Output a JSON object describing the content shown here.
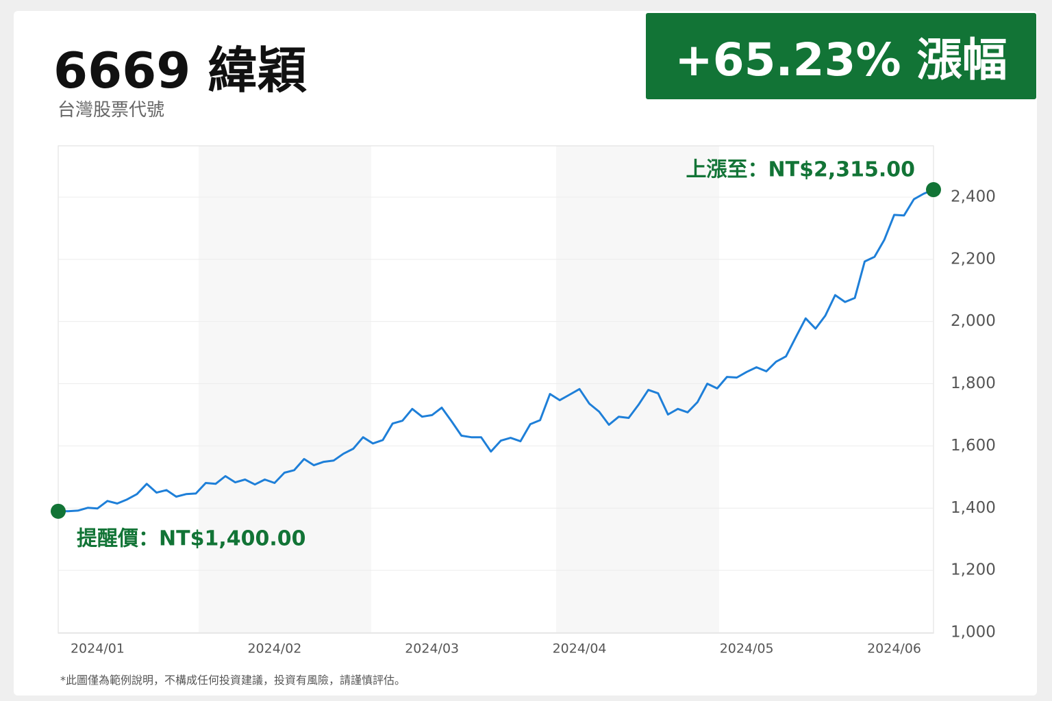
{
  "header": {
    "title": "6669 緯穎",
    "subtitle": "台灣股票代號",
    "badge": "+65.23% 漲幅"
  },
  "footnote": "*此圖僅為範例說明，不構成任何投資建議，投資有風險，請謹慎評估。",
  "chart_data": {
    "type": "line",
    "categories": [
      null,
      null,
      null,
      null,
      "2024/01",
      null,
      null,
      null,
      null,
      null,
      null,
      null,
      null,
      null,
      null,
      null,
      null,
      null,
      null,
      null,
      null,
      null,
      "2024/02",
      null,
      null,
      null,
      null,
      null,
      null,
      null,
      null,
      null,
      null,
      null,
      null,
      null,
      null,
      null,
      "2024/03",
      null,
      null,
      null,
      null,
      null,
      null,
      null,
      null,
      null,
      null,
      null,
      null,
      null,
      null,
      "2024/04",
      null,
      null,
      null,
      null,
      null,
      null,
      null,
      null,
      null,
      null,
      null,
      null,
      null,
      null,
      null,
      null,
      "2024/05",
      null,
      null,
      null,
      null,
      null,
      null,
      null,
      null,
      null,
      null,
      null,
      null,
      null,
      null,
      "2024/06",
      null,
      null,
      null,
      null
    ],
    "values": [
      1390,
      1390,
      1392,
      1401,
      1399,
      1423,
      1415,
      1428,
      1445,
      1478,
      1450,
      1458,
      1437,
      1445,
      1447,
      1481,
      1478,
      1503,
      1483,
      1492,
      1476,
      1492,
      1481,
      1514,
      1522,
      1558,
      1538,
      1549,
      1553,
      1575,
      1591,
      1628,
      1608,
      1619,
      1672,
      1681,
      1719,
      1694,
      1699,
      1723,
      1679,
      1633,
      1628,
      1628,
      1582,
      1617,
      1626,
      1615,
      1670,
      1683,
      1767,
      1747,
      1765,
      1783,
      1736,
      1710,
      1668,
      1694,
      1690,
      1732,
      1780,
      1769,
      1701,
      1719,
      1708,
      1741,
      1800,
      1785,
      1822,
      1820,
      1838,
      1853,
      1840,
      1871,
      1888,
      1950,
      2010,
      1977,
      2019,
      2085,
      2063,
      2076,
      2193,
      2208,
      2263,
      2343,
      2341,
      2393,
      2411,
      2424
    ],
    "color": "#1e7fd8",
    "marker_color": "#127436",
    "ylim": [
      1000,
      2565
    ],
    "yticks": [
      {
        "value": 1000,
        "label": "1,000"
      },
      {
        "value": 1200,
        "label": "1,200"
      },
      {
        "value": 1400,
        "label": "1,400"
      },
      {
        "value": 1600,
        "label": "1,600"
      },
      {
        "value": 1800,
        "label": "1,800"
      },
      {
        "value": 2000,
        "label": "2,000"
      },
      {
        "value": 2200,
        "label": "2,200"
      },
      {
        "value": 2400,
        "label": "2,400"
      }
    ],
    "grid": true,
    "annotations": [
      "上漲至：NT$2,315.00",
      "提醒價：NT$1,400.00"
    ]
  }
}
